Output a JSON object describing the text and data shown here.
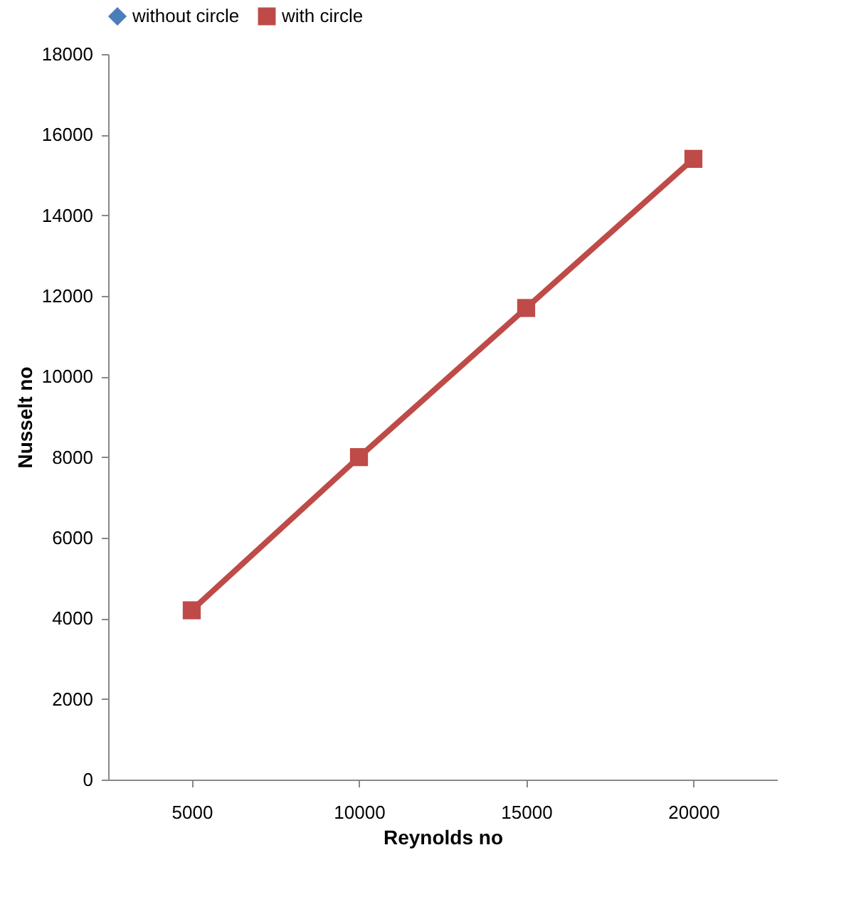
{
  "chart_data": {
    "type": "line",
    "xlabel": "Reynolds no",
    "ylabel": "Nusselt no",
    "categories": [
      "5000",
      "10000",
      "15000",
      "20000"
    ],
    "series": [
      {
        "name": "without circle",
        "color": "#4a7ebb",
        "marker": "diamond",
        "values": [
          null,
          null,
          null,
          null
        ]
      },
      {
        "name": "with circle",
        "color": "#be4b48",
        "marker": "square",
        "values": [
          4200,
          8000,
          11700,
          15400
        ]
      }
    ],
    "ylim": [
      0,
      18000
    ],
    "yticks": [
      0,
      2000,
      4000,
      6000,
      8000,
      10000,
      12000,
      14000,
      16000,
      18000
    ],
    "grid": false,
    "legend": "top",
    "line_style": "solid"
  }
}
